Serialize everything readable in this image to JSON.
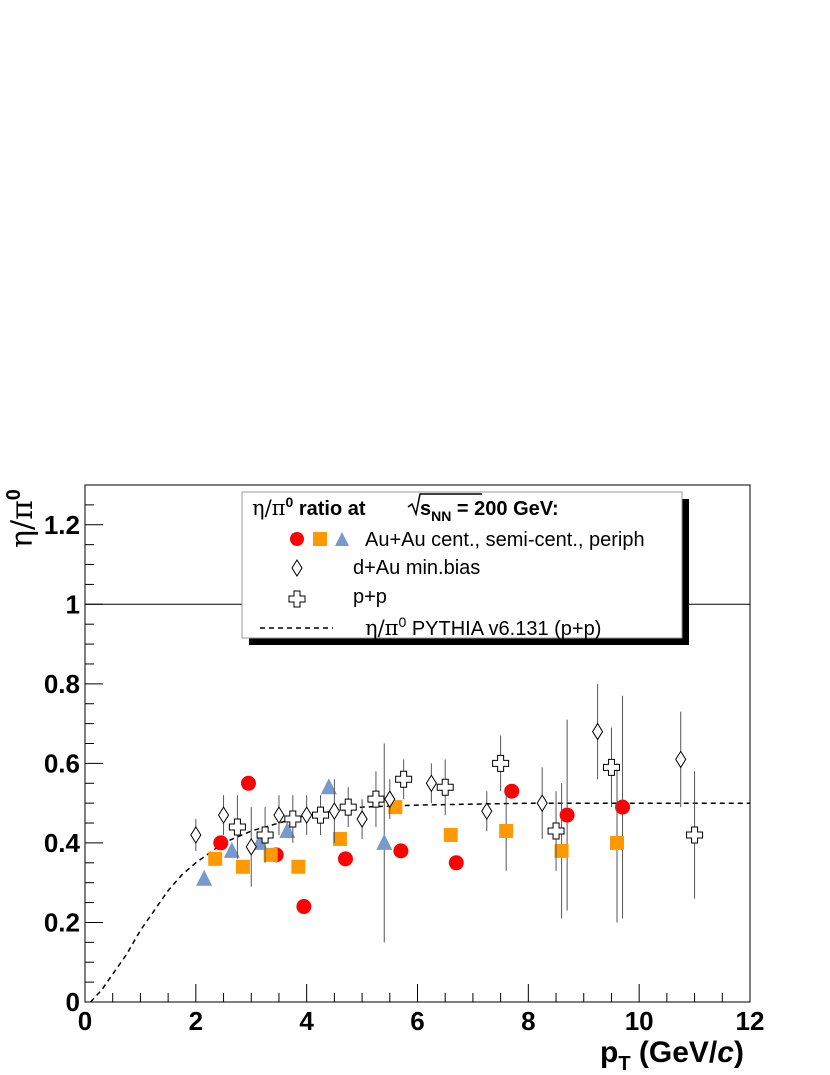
{
  "chart_data": {
    "type": "scatter",
    "xlabel": {
      "main": "p",
      "sub": "T",
      "units_pre": " (GeV/",
      "units_c": "c",
      "units_post": ")"
    },
    "ylabel": {
      "main": "η/π",
      "sup": "0"
    },
    "xlim": [
      0,
      12
    ],
    "ylim": [
      0,
      1.3
    ],
    "x_ticks": [
      0,
      2,
      4,
      6,
      8,
      10,
      12
    ],
    "x_tick_labels": [
      "0",
      "2",
      "4",
      "6",
      "8",
      "10",
      "12"
    ],
    "y_ticks": [
      0,
      0.2,
      0.4,
      0.6,
      0.8,
      1,
      1.2
    ],
    "y_tick_labels": [
      "0",
      "0.2",
      "0.4",
      "0.6",
      "0.8",
      "1",
      "1.2"
    ],
    "reference_line_y": 1,
    "grid": false,
    "legend": {
      "placement": "top-center",
      "title_pre": "η/π",
      "title_sup": "0",
      "title_mid": " ratio at ",
      "title_s": "s",
      "title_sub": "NN",
      "title_post": " = 200 GeV:",
      "entries": {
        "auau": "Au+Au cent., semi-cent., periph",
        "dau": "d+Au min.bias",
        "pp": "p+p",
        "pythia_pre": "η/π",
        "pythia_sup": "0",
        "pythia_post": " PYTHIA v6.131 (p+p)"
      }
    },
    "series": [
      {
        "name": "Au+Au cent.",
        "marker": "circle",
        "color": "#ff0000",
        "points": [
          [
            2.45,
            0.4,
            0.0
          ],
          [
            2.95,
            0.55,
            0.0
          ],
          [
            3.45,
            0.37,
            0.0
          ],
          [
            3.95,
            0.24,
            0.0
          ],
          [
            4.7,
            0.36,
            0.0
          ],
          [
            5.7,
            0.38,
            0.0
          ],
          [
            6.7,
            0.35,
            0.0
          ],
          [
            7.7,
            0.53,
            0.0
          ],
          [
            8.7,
            0.47,
            0.24
          ],
          [
            9.7,
            0.49,
            0.28
          ]
        ]
      },
      {
        "name": "Au+Au semi-cent.",
        "marker": "square",
        "color": "#ff9900",
        "points": [
          [
            2.35,
            0.36,
            0.0
          ],
          [
            2.85,
            0.34,
            0.0
          ],
          [
            3.35,
            0.37,
            0.0
          ],
          [
            3.85,
            0.34,
            0.0
          ],
          [
            4.6,
            0.41,
            0.0
          ],
          [
            5.6,
            0.49,
            0.0
          ],
          [
            6.6,
            0.42,
            0.0
          ],
          [
            7.6,
            0.43,
            0.1
          ],
          [
            8.6,
            0.38,
            0.17
          ],
          [
            9.6,
            0.4,
            0.2
          ]
        ]
      },
      {
        "name": "Au+Au periph",
        "marker": "triangle",
        "color": "#7799cc",
        "points": [
          [
            2.15,
            0.31,
            0.0
          ],
          [
            2.65,
            0.38,
            0.0
          ],
          [
            3.15,
            0.4,
            0.0
          ],
          [
            3.65,
            0.43,
            0.0
          ],
          [
            4.4,
            0.54,
            0.0
          ],
          [
            5.4,
            0.4,
            0.25
          ]
        ]
      },
      {
        "name": "d+Au min.bias",
        "marker": "diamond",
        "color": "#000000",
        "points": [
          [
            2.0,
            0.42,
            0.04
          ],
          [
            2.5,
            0.47,
            0.05
          ],
          [
            3.0,
            0.39,
            0.1
          ],
          [
            3.5,
            0.47,
            0.05
          ],
          [
            4.0,
            0.47,
            0.05
          ],
          [
            4.5,
            0.48,
            0.08
          ],
          [
            5.0,
            0.46,
            0.05
          ],
          [
            5.5,
            0.51,
            0.05
          ],
          [
            6.25,
            0.55,
            0.05
          ],
          [
            7.25,
            0.48,
            0.05
          ],
          [
            8.25,
            0.5,
            0.09
          ],
          [
            9.25,
            0.68,
            0.12
          ],
          [
            10.75,
            0.61,
            0.12
          ]
        ]
      },
      {
        "name": "p+p",
        "marker": "cross",
        "color": "#000000",
        "points": [
          [
            2.75,
            0.44,
            0.08
          ],
          [
            3.25,
            0.42,
            0.07
          ],
          [
            3.75,
            0.46,
            0.06
          ],
          [
            4.25,
            0.47,
            0.05
          ],
          [
            4.75,
            0.49,
            0.05
          ],
          [
            5.25,
            0.51,
            0.07
          ],
          [
            5.75,
            0.56,
            0.05
          ],
          [
            6.5,
            0.54,
            0.07
          ],
          [
            7.5,
            0.6,
            0.07
          ],
          [
            8.5,
            0.43,
            0.1
          ],
          [
            9.5,
            0.59,
            0.1
          ],
          [
            11.0,
            0.42,
            0.16
          ]
        ]
      }
    ],
    "pythia_curve": {
      "style": "dashed",
      "color": "#000000",
      "asymptote": 0.5,
      "x": [
        0.1,
        0.3,
        0.5,
        0.75,
        1.0,
        1.25,
        1.5,
        1.75,
        2.0,
        2.5,
        3.0,
        3.5,
        4.0,
        5.0,
        6.0,
        8.0,
        10.0,
        12.0
      ],
      "y": [
        0.0,
        0.03,
        0.07,
        0.12,
        0.18,
        0.23,
        0.28,
        0.32,
        0.35,
        0.4,
        0.43,
        0.45,
        0.47,
        0.49,
        0.495,
        0.5,
        0.5,
        0.5
      ]
    }
  }
}
